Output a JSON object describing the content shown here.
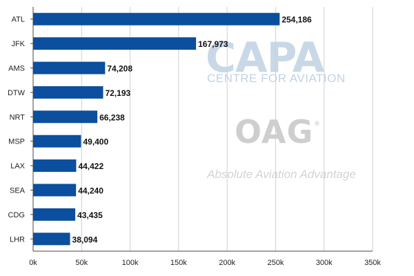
{
  "watermarks": {
    "capa_logo": "CAPA",
    "capa_subtitle": "CENTRE FOR AVIATION",
    "oag_logo": "OAG",
    "oag_registered": "®",
    "oag_subtitle": "Absolute Aviation Advantage"
  },
  "colors": {
    "bar": "#0b4f9e",
    "grid": "#cfcfcf",
    "axis": "#444444"
  },
  "chart_data": {
    "type": "bar",
    "orientation": "horizontal",
    "title": "",
    "xlabel": "",
    "ylabel": "",
    "categories": [
      "ATL",
      "JFK",
      "AMS",
      "DTW",
      "NRT",
      "MSP",
      "LAX",
      "SEA",
      "CDG",
      "LHR"
    ],
    "values": [
      254186,
      167973,
      74208,
      72193,
      66238,
      49400,
      44422,
      44240,
      43435,
      38094
    ],
    "value_labels": [
      "254,186",
      "167,973",
      "74,208",
      "72,193",
      "66,238",
      "49,400",
      "44,422",
      "44,240",
      "43,435",
      "38,094"
    ],
    "xlim": [
      0,
      350000
    ],
    "x_ticks": [
      0,
      50000,
      100000,
      150000,
      200000,
      250000,
      300000,
      350000
    ],
    "x_tick_labels": [
      "0k",
      "50k",
      "100k",
      "150k",
      "200k",
      "250k",
      "300k",
      "350k"
    ],
    "grid": true,
    "legend": "none"
  }
}
